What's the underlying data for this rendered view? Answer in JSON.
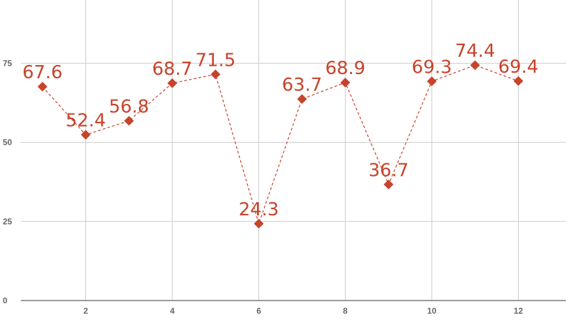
{
  "chart_data": {
    "type": "line",
    "title": "",
    "xlabel": "",
    "ylabel": "",
    "x": [
      1,
      2,
      3,
      4,
      5,
      6,
      7,
      8,
      9,
      10,
      11,
      12
    ],
    "series": [
      {
        "values": [
          67.6,
          52.4,
          56.8,
          68.7,
          71.5,
          24.3,
          63.7,
          68.9,
          36.7,
          69.3,
          74.4,
          69.4
        ]
      }
    ],
    "data_labels": [
      "67.6",
      "52.4",
      "56.8",
      "68.7",
      "71.5",
      "24.3",
      "63.7",
      "68.9",
      "36.7",
      "69.3",
      "74.4",
      "69.4"
    ],
    "xlim": [
      0.5,
      13.1
    ],
    "ylim": [
      0,
      95
    ],
    "x_ticks": [
      "2",
      "4",
      "6",
      "8",
      "10",
      "12"
    ],
    "y_ticks": [
      "0",
      "25",
      "50",
      "75"
    ],
    "line_style": "dashed",
    "marker": "diamond",
    "grid": true,
    "legend": "none",
    "colors": {
      "series": "#c7432b",
      "grid": "#cccccc",
      "axis": "#333333",
      "tick_text": "#666666"
    }
  }
}
